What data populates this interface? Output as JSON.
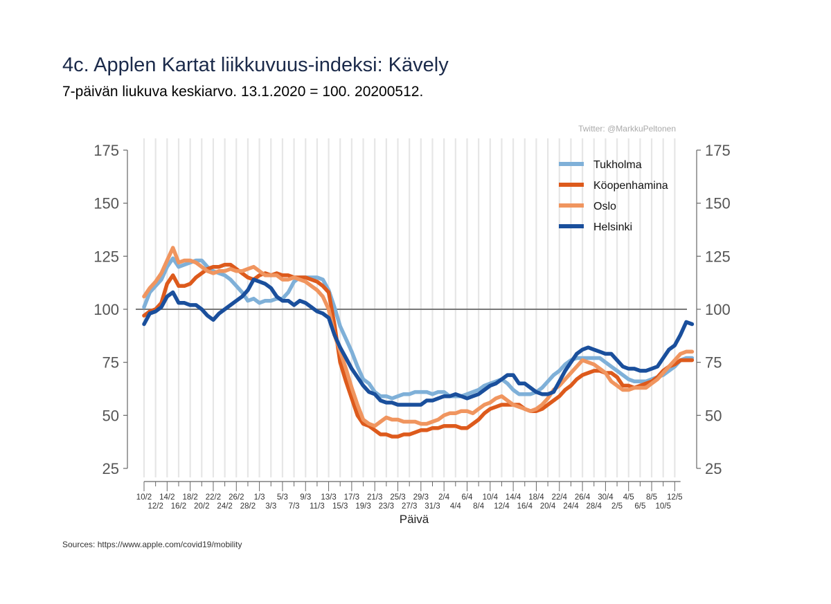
{
  "header": {
    "title": "4c. Applen Kartat liikkuvuus-indeksi: Kävely",
    "subtitle": "7-päivän liukuva keskiarvo. 13.1.2020 = 100. 20200512.",
    "credit": "Twitter: @MarkkuPeltonen",
    "source": "Sources: https://www.apple.com/covid19/mobility"
  },
  "chart_data": {
    "type": "line",
    "title": "4c. Applen Kartat liikkuvuus-indeksi: Kävely",
    "subtitle": "7-päivän liukuva keskiarvo. 13.1.2020 = 100. 20200512.",
    "xlabel": "Päivä",
    "ylabel": "",
    "ylim": [
      25,
      175
    ],
    "yticks": [
      25,
      50,
      75,
      100,
      125,
      150,
      175
    ],
    "reference_line": 100,
    "grid": "vertical",
    "legend_position": "top-right",
    "x_start": "10/2",
    "x_end": "12/5",
    "xticks_top": [
      "10/2",
      "14/2",
      "18/2",
      "22/2",
      "26/2",
      "1/3",
      "5/3",
      "9/3",
      "13/3",
      "17/3",
      "21/3",
      "25/3",
      "29/3",
      "2/4",
      "6/4",
      "10/4",
      "14/4",
      "18/4",
      "22/4",
      "26/4",
      "30/4",
      "4/5",
      "8/5",
      "12/5"
    ],
    "xticks_bottom": [
      "12/2",
      "16/2",
      "20/2",
      "24/2",
      "28/2",
      "3/3",
      "7/3",
      "11/3",
      "15/3",
      "19/3",
      "23/3",
      "27/3",
      "31/3",
      "4/4",
      "8/4",
      "12/4",
      "16/4",
      "20/4",
      "24/4",
      "28/4",
      "2/5",
      "6/5",
      "10/5"
    ],
    "series": [
      {
        "name": "Tukholma",
        "color": "#7fb0d8",
        "values": [
          101,
          108,
          111,
          114,
          120,
          124,
          120,
          121,
          122,
          123,
          123,
          120,
          118,
          117,
          116,
          114,
          111,
          108,
          104,
          105,
          103,
          104,
          104,
          105,
          105,
          108,
          113,
          115,
          115,
          115,
          115,
          114,
          109,
          101,
          92,
          86,
          80,
          73,
          67,
          65,
          61,
          59,
          59,
          58,
          59,
          60,
          60,
          61,
          61,
          61,
          60,
          61,
          61,
          59,
          59,
          59,
          60,
          61,
          62,
          64,
          65,
          66,
          67,
          65,
          62,
          60,
          60,
          60,
          61,
          63,
          66,
          69,
          71,
          74,
          76,
          77,
          77,
          77,
          77,
          77,
          75,
          73,
          71,
          69,
          67,
          66,
          66,
          66,
          67,
          68,
          69,
          71,
          73,
          76,
          77,
          77
        ]
      },
      {
        "name": "Köopenhamina",
        "color": "#dd5a1c",
        "values": [
          97,
          99,
          100,
          103,
          112,
          116,
          111,
          111,
          112,
          115,
          117,
          119,
          120,
          120,
          121,
          121,
          119,
          117,
          115,
          114,
          116,
          117,
          116,
          117,
          116,
          116,
          115,
          115,
          115,
          114,
          113,
          111,
          108,
          93,
          75,
          66,
          58,
          50,
          46,
          45,
          43,
          41,
          41,
          40,
          40,
          41,
          41,
          42,
          43,
          43,
          44,
          44,
          45,
          45,
          45,
          44,
          44,
          46,
          48,
          51,
          53,
          54,
          55,
          55,
          55,
          55,
          53,
          52,
          52,
          53,
          55,
          57,
          59,
          62,
          64,
          67,
          69,
          70,
          71,
          71,
          70,
          70,
          68,
          64,
          64,
          63,
          64,
          65,
          66,
          68,
          71,
          73,
          74,
          76,
          76,
          76
        ]
      },
      {
        "name": "Oslo",
        "color": "#f0955f",
        "values": [
          106,
          110,
          113,
          117,
          123,
          129,
          122,
          123,
          123,
          122,
          120,
          118,
          117,
          118,
          118,
          119,
          118,
          118,
          119,
          120,
          118,
          116,
          116,
          116,
          114,
          114,
          115,
          114,
          113,
          111,
          109,
          106,
          100,
          88,
          80,
          72,
          63,
          55,
          48,
          46,
          45,
          47,
          49,
          48,
          48,
          47,
          47,
          47,
          46,
          46,
          47,
          48,
          50,
          51,
          51,
          52,
          52,
          51,
          53,
          55,
          56,
          58,
          59,
          57,
          55,
          54,
          53,
          52,
          53,
          55,
          58,
          62,
          64,
          67,
          70,
          73,
          76,
          75,
          74,
          72,
          70,
          66,
          64,
          62,
          62,
          63,
          63,
          63,
          65,
          67,
          70,
          73,
          76,
          79,
          80,
          80
        ]
      },
      {
        "name": "Helsinki",
        "color": "#1a4f9c",
        "values": [
          93,
          98,
          99,
          101,
          106,
          108,
          103,
          103,
          102,
          102,
          100,
          97,
          95,
          98,
          100,
          102,
          104,
          106,
          109,
          114,
          113,
          112,
          110,
          106,
          104,
          104,
          102,
          104,
          103,
          101,
          99,
          98,
          96,
          88,
          82,
          77,
          72,
          68,
          64,
          61,
          60,
          57,
          56,
          56,
          55,
          55,
          55,
          55,
          55,
          57,
          57,
          58,
          59,
          59,
          60,
          59,
          58,
          59,
          60,
          62,
          64,
          65,
          67,
          69,
          69,
          65,
          65,
          63,
          61,
          60,
          60,
          61,
          66,
          71,
          75,
          79,
          81,
          82,
          81,
          80,
          79,
          79,
          76,
          73,
          72,
          72,
          71,
          71,
          72,
          73,
          77,
          81,
          83,
          88,
          94,
          93
        ]
      }
    ]
  }
}
